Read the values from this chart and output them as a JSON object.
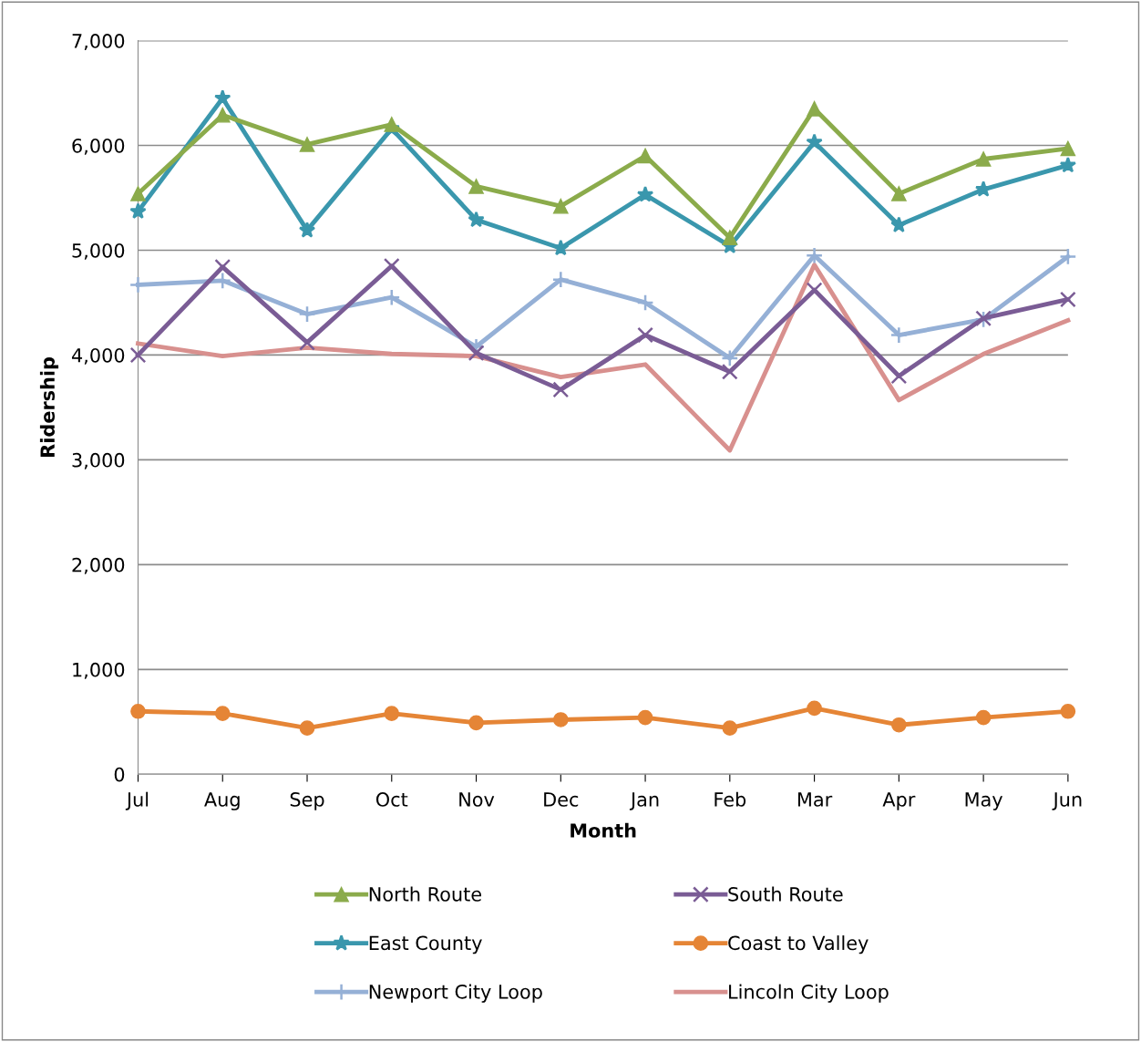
{
  "chart_data": {
    "type": "line",
    "xlabel": "Month",
    "ylabel": "Ridership",
    "categories": [
      "Jul",
      "Aug",
      "Sep",
      "Oct",
      "Nov",
      "Dec",
      "Jan",
      "Feb",
      "Mar",
      "Apr",
      "May",
      "Jun"
    ],
    "series": [
      {
        "name": "North Route",
        "color": "#8bab4b",
        "marker": "triangle",
        "values": [
          5540,
          6290,
          6010,
          6200,
          5610,
          5420,
          5900,
          5120,
          6350,
          5540,
          5870,
          5970
        ]
      },
      {
        "name": "South Route",
        "color": "#7a5c95",
        "marker": "cross",
        "values": [
          4000,
          4840,
          4120,
          4850,
          4020,
          3670,
          4190,
          3840,
          4620,
          3800,
          4350,
          4530
        ]
      },
      {
        "name": "East County",
        "color": "#3a97ad",
        "marker": "star",
        "values": [
          5370,
          6450,
          5190,
          6160,
          5290,
          5020,
          5530,
          5040,
          6030,
          5240,
          5580,
          5810
        ]
      },
      {
        "name": "Coast to Valley",
        "color": "#e58536",
        "marker": "circle",
        "values": [
          600,
          580,
          440,
          580,
          490,
          520,
          540,
          440,
          630,
          470,
          540,
          600
        ]
      },
      {
        "name": "Newport City Loop",
        "color": "#95b0d6",
        "marker": "plus",
        "values": [
          4670,
          4710,
          4390,
          4550,
          4080,
          4720,
          4500,
          3970,
          4950,
          4190,
          4340,
          4940
        ]
      },
      {
        "name": "Lincoln City Loop",
        "color": "#d8908e",
        "marker": "none",
        "values": [
          4110,
          3990,
          4070,
          4010,
          3990,
          3790,
          3910,
          3090,
          4860,
          3570,
          4010,
          4330
        ]
      }
    ],
    "ylim": [
      0,
      7000
    ],
    "yticks": [
      {
        "value": 0,
        "label": "0"
      },
      {
        "value": 1000,
        "label": "1,000"
      },
      {
        "value": 2000,
        "label": "2,000"
      },
      {
        "value": 3000,
        "label": "3,000"
      },
      {
        "value": 4000,
        "label": "4,000"
      },
      {
        "value": 5000,
        "label": "5,000"
      },
      {
        "value": 6000,
        "label": "6,000"
      },
      {
        "value": 7000,
        "label": "7,000"
      }
    ],
    "grid": "y",
    "legend": "bottom",
    "line_style": "solid"
  }
}
